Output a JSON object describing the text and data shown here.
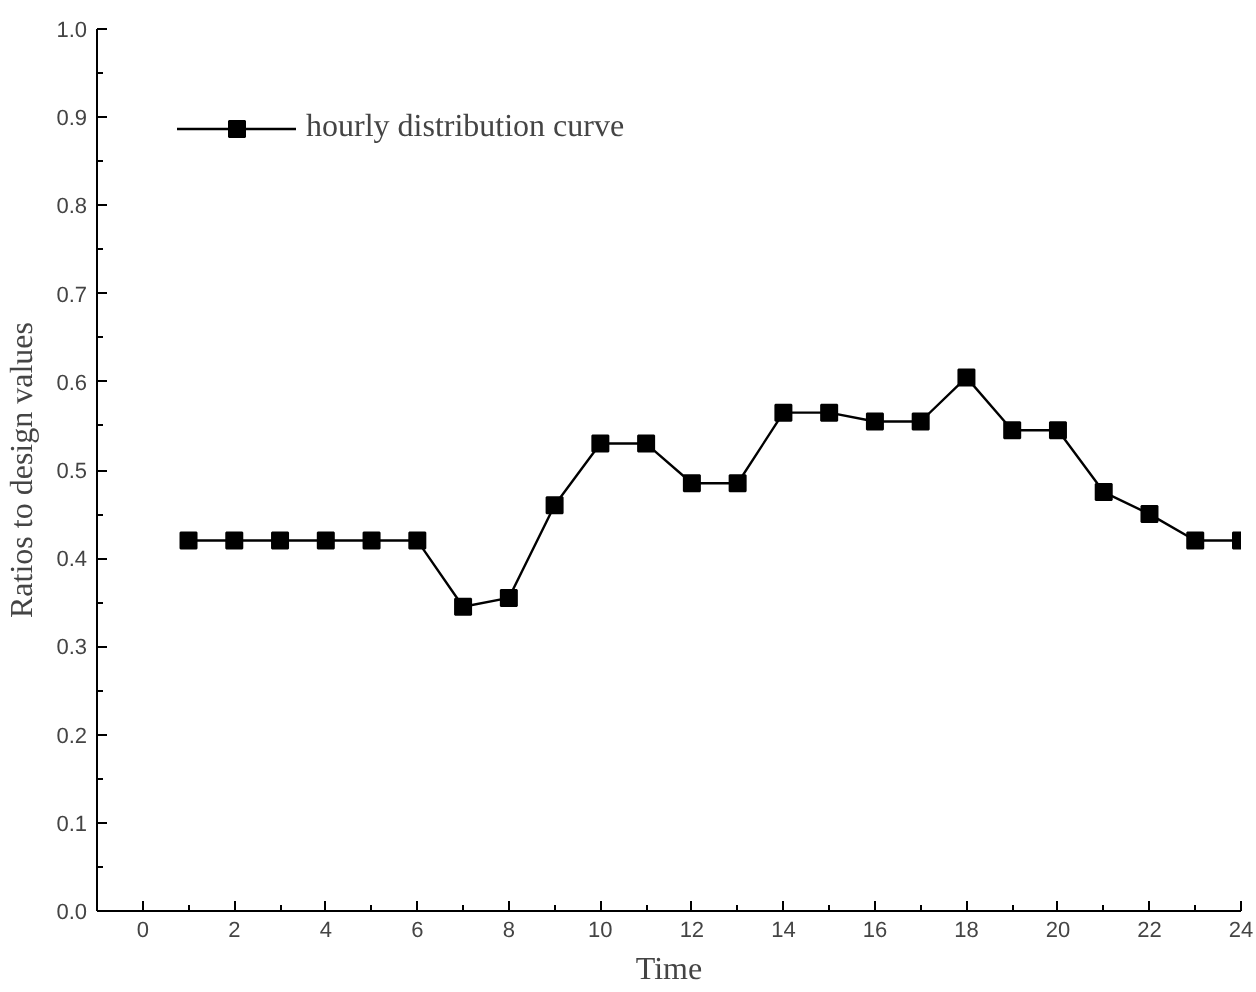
{
  "chart_data": {
    "type": "line",
    "xlabel": "Time",
    "ylabel": "Ratios to design values",
    "x": [
      1,
      2,
      3,
      4,
      5,
      6,
      7,
      8,
      9,
      10,
      11,
      12,
      13,
      14,
      15,
      16,
      17,
      18,
      19,
      20,
      21,
      22,
      23,
      24
    ],
    "series": [
      {
        "name": "hourly distribution curve",
        "color": "#000000",
        "values": [
          0.42,
          0.42,
          0.42,
          0.42,
          0.42,
          0.42,
          0.345,
          0.355,
          0.46,
          0.53,
          0.53,
          0.485,
          0.485,
          0.565,
          0.565,
          0.555,
          0.555,
          0.605,
          0.545,
          0.545,
          0.475,
          0.45,
          0.42,
          0.42
        ]
      }
    ],
    "xlim": [
      -1,
      24
    ],
    "ylim": [
      0,
      1.0
    ],
    "xticks": [
      0,
      2,
      4,
      6,
      8,
      10,
      12,
      14,
      16,
      18,
      20,
      22,
      24
    ],
    "yticks": [
      {
        "value": 0,
        "label": "0.0"
      },
      {
        "value": 0.1,
        "label": "0.1"
      },
      {
        "value": 0.2,
        "label": "0.2"
      },
      {
        "value": 0.3,
        "label": "0.3"
      },
      {
        "value": 0.4,
        "label": "0.4"
      },
      {
        "value": 0.5,
        "label": "0.5"
      },
      {
        "value": 0.6,
        "label": "0.6"
      },
      {
        "value": 0.7,
        "label": "0.7"
      },
      {
        "value": 0.8,
        "label": "0.8"
      },
      {
        "value": 0.9,
        "label": "0.9"
      },
      {
        "value": 1.0,
        "label": "1.0"
      }
    ],
    "grid": false,
    "legend": "top left",
    "marker": "square",
    "line_style": "solid"
  }
}
